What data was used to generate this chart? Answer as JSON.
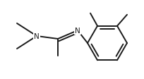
{
  "background_color": "#ffffff",
  "line_color": "#1a1a1a",
  "line_width": 1.4,
  "figsize": [
    2.04,
    1.13
  ],
  "dpi": 100,
  "font_size": 7.5
}
